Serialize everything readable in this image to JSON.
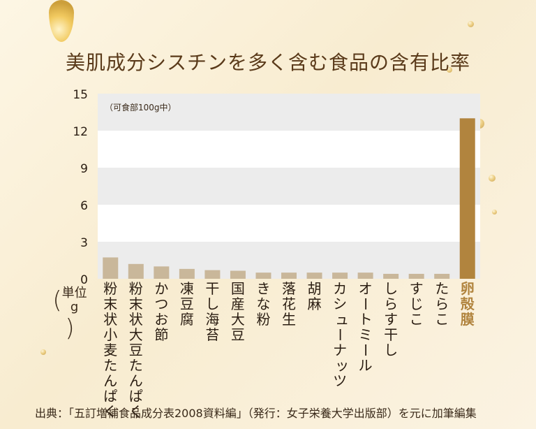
{
  "title": "美肌成分シスチンを多く含む食品の含有比率",
  "unit_label": {
    "top": "単位",
    "bottom": "g"
  },
  "footnote": "出典：「五訂増補食品成分表2008資料編」（発行：女子栄養大学出版部）を元に加筆編集",
  "colors": {
    "bar": "#c9b79a",
    "highlight_bar": "#b1843e",
    "highlight_text": "#b1843e",
    "band_dark": "#ececec",
    "band_light": "#ffffff"
  },
  "chart_data": {
    "type": "bar",
    "subtitle": "（可食部100g中）",
    "ylabel": "",
    "ylim": [
      0,
      15
    ],
    "yticks": [
      0,
      3,
      6,
      9,
      12,
      15
    ],
    "categories": [
      "粉末状小麦たんぱく",
      "粉末状大豆たんぱく",
      "かつお節",
      "凍豆腐",
      "干し海苔",
      "国産大豆",
      "きな粉",
      "落花生",
      "胡麻",
      "カシューナッツ",
      "オートミール",
      "しらす干し",
      "すじこ",
      "たらこ",
      "卵殻膜"
    ],
    "values": [
      1.73,
      1.2,
      1.0,
      0.8,
      0.7,
      0.65,
      0.5,
      0.5,
      0.5,
      0.5,
      0.5,
      0.4,
      0.4,
      0.4,
      13.0
    ],
    "highlight": "卵殻膜",
    "grid": true
  }
}
